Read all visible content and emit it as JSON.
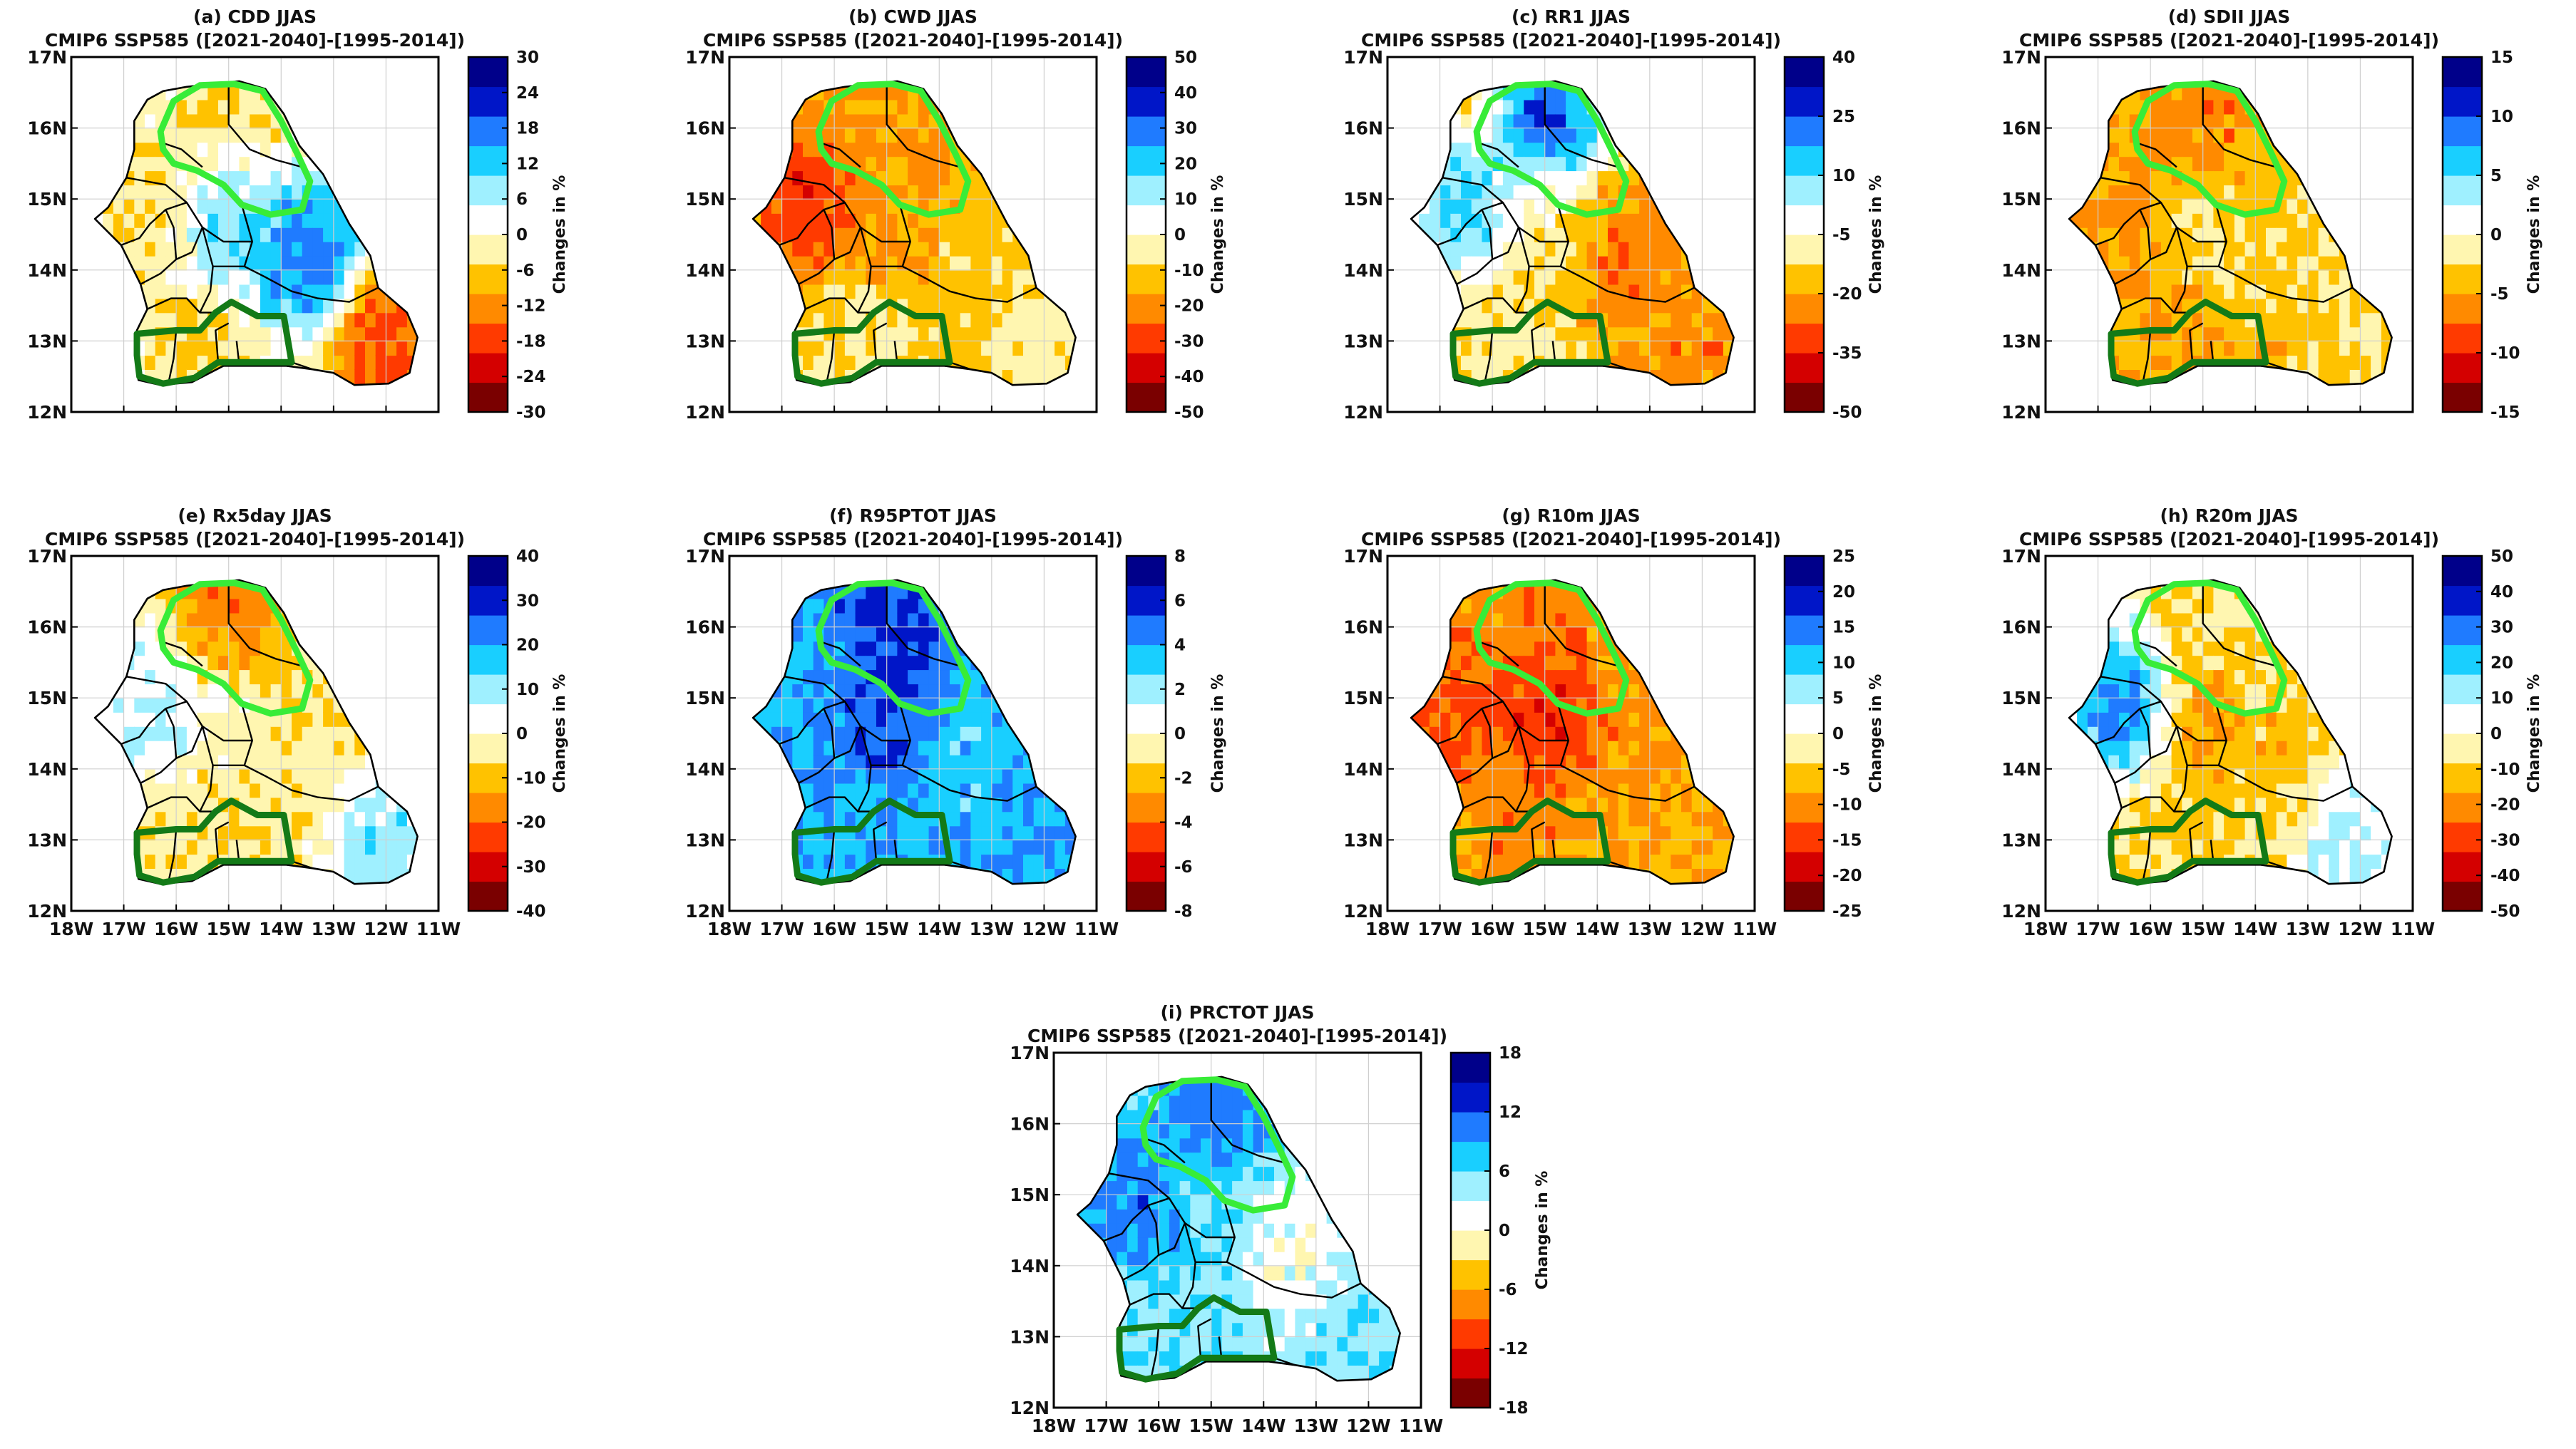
{
  "figure": {
    "colors": {
      "dark_green": "#137a17",
      "light_green": "#38ec38",
      "border": "#000000"
    },
    "xticks": [
      "18W",
      "17W",
      "16W",
      "15W",
      "14W",
      "13W",
      "12W",
      "11W"
    ],
    "yticks": [
      "17N",
      "16N",
      "15N",
      "14N",
      "13N",
      "12N"
    ],
    "colorbar_label": "Changes in %",
    "colorbar_colors": [
      "#7a0000",
      "#d40000",
      "#ff3a00",
      "#ff8a00",
      "#ffc200",
      "#fff6b0",
      "#ffffff",
      "#9ff0ff",
      "#19cfff",
      "#1f7bff",
      "#0016c8",
      "#00008a"
    ],
    "panels": [
      {
        "id": "a",
        "title": "(a) CDD JJAS",
        "subtitle": "CMIP6 SSP585 ([2021-2040]-[1995-2014])",
        "cbar_ticks": [
          "30",
          "24",
          "18",
          "12",
          "6",
          "0",
          "-6",
          "-12",
          "-18",
          "-24",
          "-30"
        ],
        "pattern": {
          "base": 0,
          "north": -6,
          "west": -6,
          "center": 12,
          "east": 22,
          "south": -6,
          "southeast": -20
        }
      },
      {
        "id": "b",
        "title": "(b) CWD JJAS",
        "subtitle": "CMIP6 SSP585 ([2021-2040]-[1995-2014])",
        "cbar_ticks": [
          "50",
          "40",
          "30",
          "20",
          "10",
          "0",
          "-10",
          "-20",
          "-30",
          "-40",
          "-50"
        ],
        "pattern": {
          "base": -12,
          "north": -22,
          "west": -35,
          "center": -20,
          "east": -12,
          "south": -4,
          "southeast": -2
        }
      },
      {
        "id": "c",
        "title": "(c) RR1 JJAS",
        "subtitle": "CMIP6 SSP585 ([2021-2040]-[1995-2014])",
        "cbar_ticks": [
          "40",
          "25",
          "10",
          "-5",
          "-20",
          "-35",
          "-50"
        ],
        "pattern": {
          "base": -10,
          "north": 35,
          "west": 22,
          "center": -2,
          "east": -20,
          "south": -4,
          "southeast": -18
        }
      },
      {
        "id": "d",
        "title": "(d) SDII JJAS",
        "subtitle": "CMIP6 SSP585 ([2021-2040]-[1995-2014])",
        "cbar_ticks": [
          "15",
          "10",
          "5",
          "0",
          "-5",
          "-10",
          "-15"
        ],
        "pattern": {
          "base": -4,
          "north": -7,
          "west": -6,
          "center": -2,
          "east": -3,
          "south": -5,
          "southeast": -2
        }
      },
      {
        "id": "e",
        "title": "(e) Rx5day JJAS",
        "subtitle": "CMIP6 SSP585 ([2021-2040]-[1995-2014])",
        "cbar_ticks": [
          "40",
          "30",
          "20",
          "10",
          "0",
          "-10",
          "-20",
          "-30",
          "-40"
        ],
        "pattern": {
          "base": -5,
          "north": -22,
          "west": 12,
          "center": 0,
          "east": -5,
          "south": -6,
          "southeast": 15
        }
      },
      {
        "id": "f",
        "title": "(f) R95PTOT JJAS",
        "subtitle": "CMIP6 SSP585 ([2021-2040]-[1995-2014])",
        "cbar_ticks": [
          "8",
          "6",
          "4",
          "2",
          "0",
          "-2",
          "-4",
          "-6",
          "-8"
        ],
        "pattern": {
          "base": 4,
          "north": 6,
          "west": 4,
          "center": 6,
          "east": 3,
          "south": 3.5,
          "southeast": 4
        }
      },
      {
        "id": "g",
        "title": "(g) R10m JJAS",
        "subtitle": "CMIP6 SSP585 ([2021-2040]-[1995-2014])",
        "cbar_ticks": [
          "25",
          "20",
          "15",
          "10",
          "5",
          "0",
          "-5",
          "-10",
          "-15",
          "-20",
          "-25"
        ],
        "pattern": {
          "base": -8,
          "north": -12,
          "west": -15,
          "center": -18,
          "east": -10,
          "south": -11,
          "southeast": -8
        }
      },
      {
        "id": "h",
        "title": "(h) R20m JJAS",
        "subtitle": "CMIP6 SSP585 ([2021-2040]-[1995-2014])",
        "cbar_ticks": [
          "50",
          "40",
          "30",
          "20",
          "10",
          "0",
          "-10",
          "-20",
          "-30",
          "-40",
          "-50"
        ],
        "pattern": {
          "base": -5,
          "north": -10,
          "west": 35,
          "center": -20,
          "east": -14,
          "south": -12,
          "southeast": 15
        }
      },
      {
        "id": "i",
        "title": "(i) PRCTOT JJAS",
        "subtitle": "CMIP6 SSP585 ([2021-2040]-[1995-2014])",
        "cbar_ticks": [
          "18",
          "12",
          "6",
          "0",
          "-6",
          "-12",
          "-18"
        ],
        "pattern": {
          "base": 5,
          "north": 13,
          "west": 12,
          "center": 6,
          "east": 0,
          "south": 6,
          "southeast": 6
        }
      }
    ]
  }
}
